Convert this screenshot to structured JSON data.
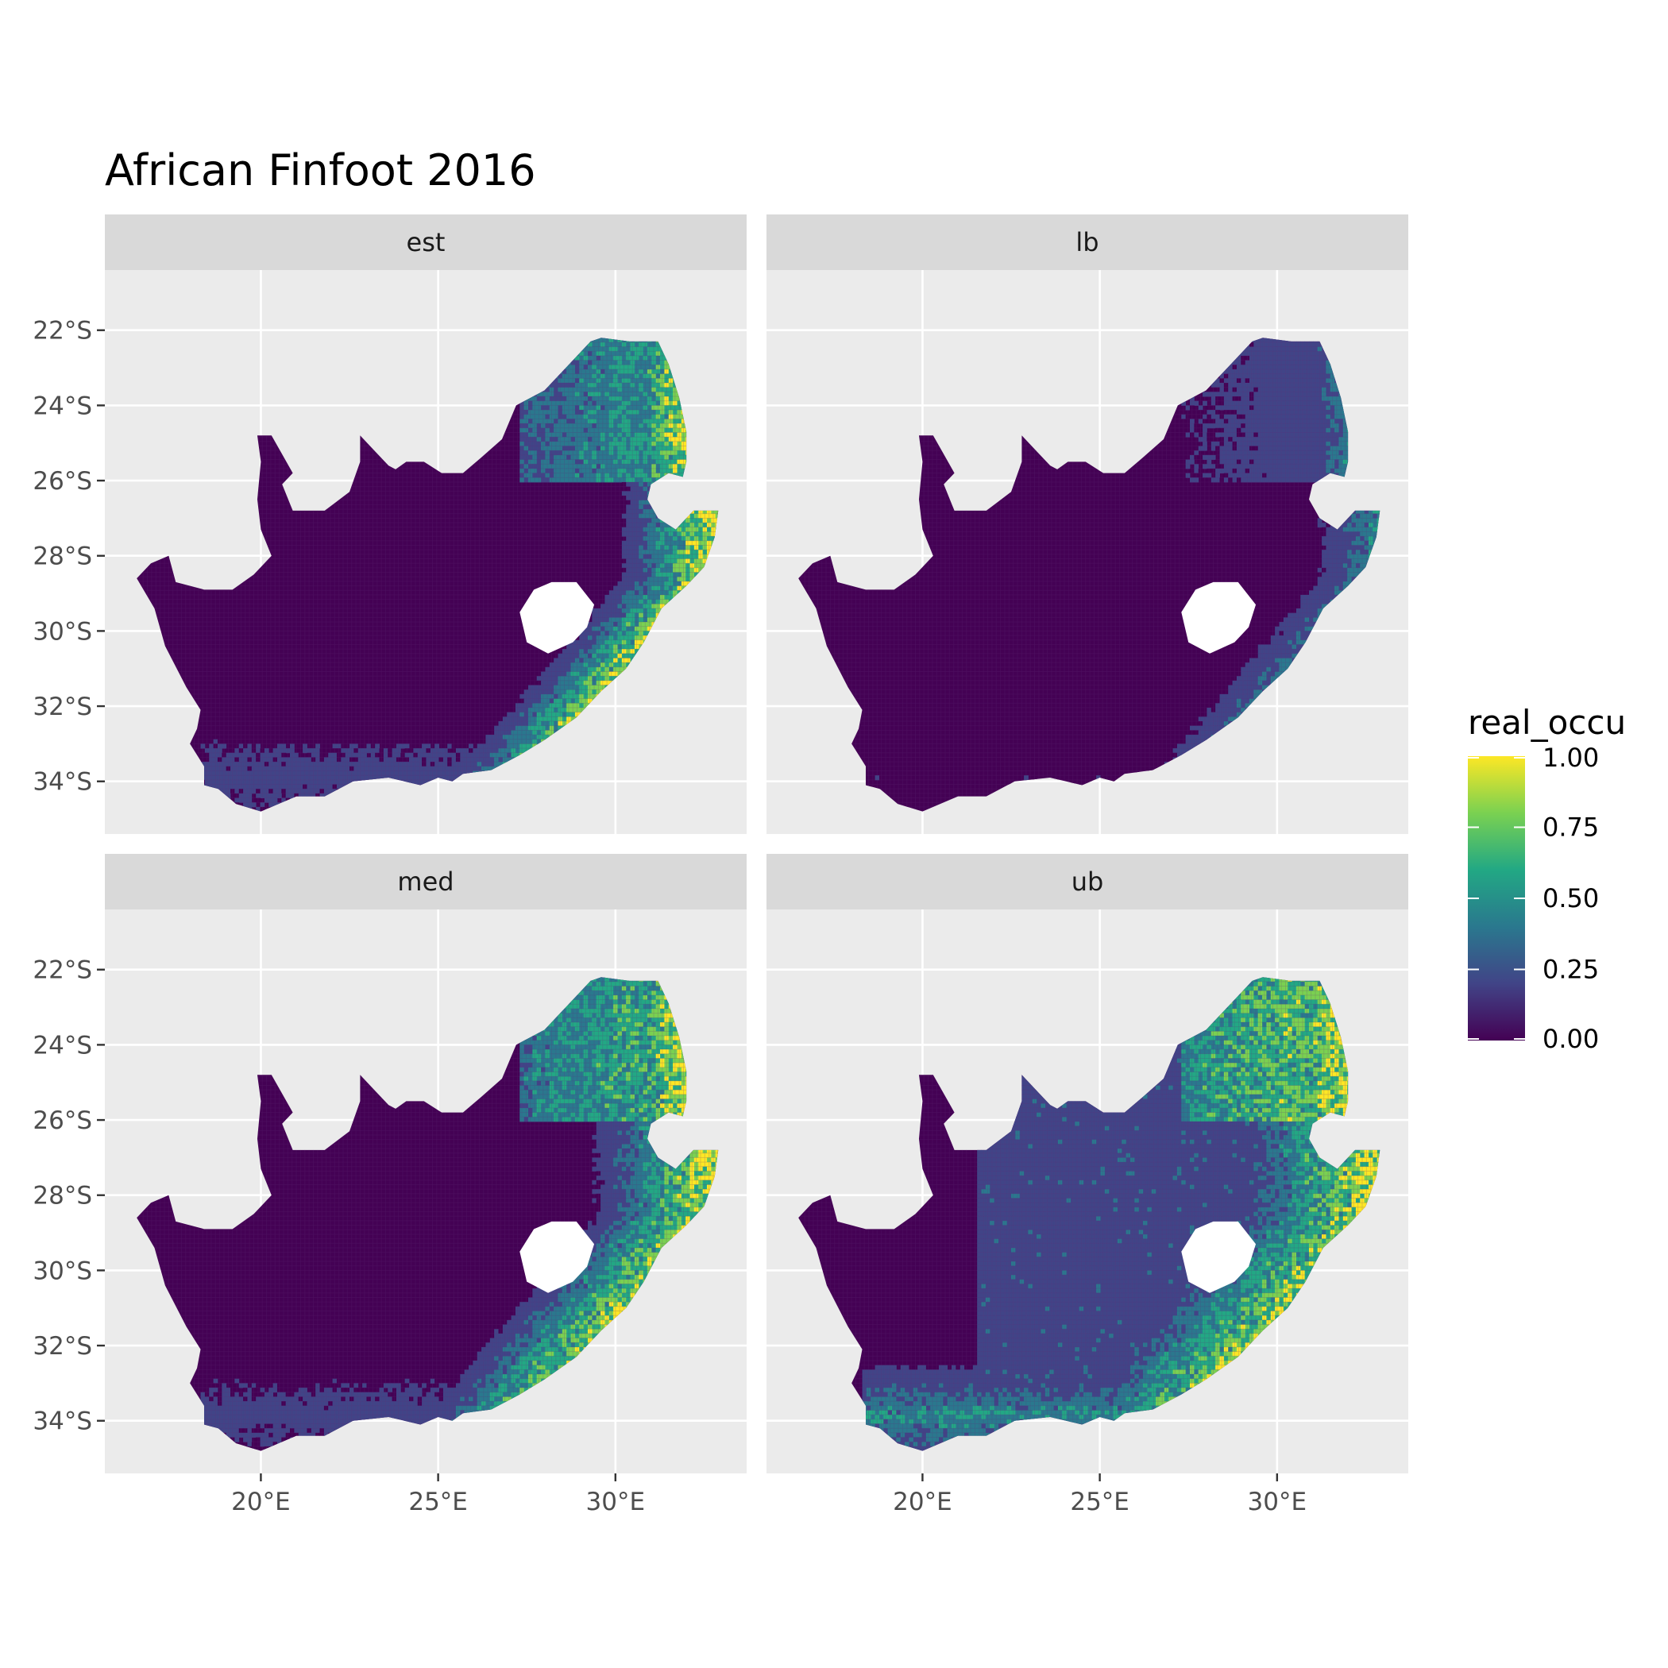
{
  "title": "African Finfoot 2016",
  "legend": {
    "title": "real_occu",
    "ticks": [
      "1.00",
      "0.75",
      "0.50",
      "0.25",
      "0.00"
    ],
    "tick_values": [
      1.0,
      0.75,
      0.5,
      0.25,
      0.0
    ],
    "colors": [
      "#fde725",
      "#7ad151",
      "#22a884",
      "#2a788e",
      "#414487",
      "#440154"
    ]
  },
  "panels": [
    {
      "label": "est",
      "intensity": "moderate"
    },
    {
      "label": "lb",
      "intensity": "low"
    },
    {
      "label": "med",
      "intensity": "moderate-high"
    },
    {
      "label": "ub",
      "intensity": "high"
    }
  ],
  "axes": {
    "y_ticks": [
      "22°S",
      "24°S",
      "26°S",
      "28°S",
      "30°S",
      "32°S",
      "34°S"
    ],
    "y_values": [
      -22,
      -24,
      -26,
      -28,
      -30,
      -32,
      -34
    ],
    "x_ticks": [
      "20°E",
      "25°E",
      "30°E"
    ],
    "x_values": [
      20,
      25,
      30
    ],
    "lon_range": [
      15.6,
      33.7
    ],
    "lat_range": [
      -35.4,
      -20.4
    ]
  },
  "colors": {
    "panel_bg": "#ebebeb",
    "strip_bg": "#d9d9d9",
    "grid": "#ffffff",
    "low": "#440154",
    "high": "#fde725"
  }
}
